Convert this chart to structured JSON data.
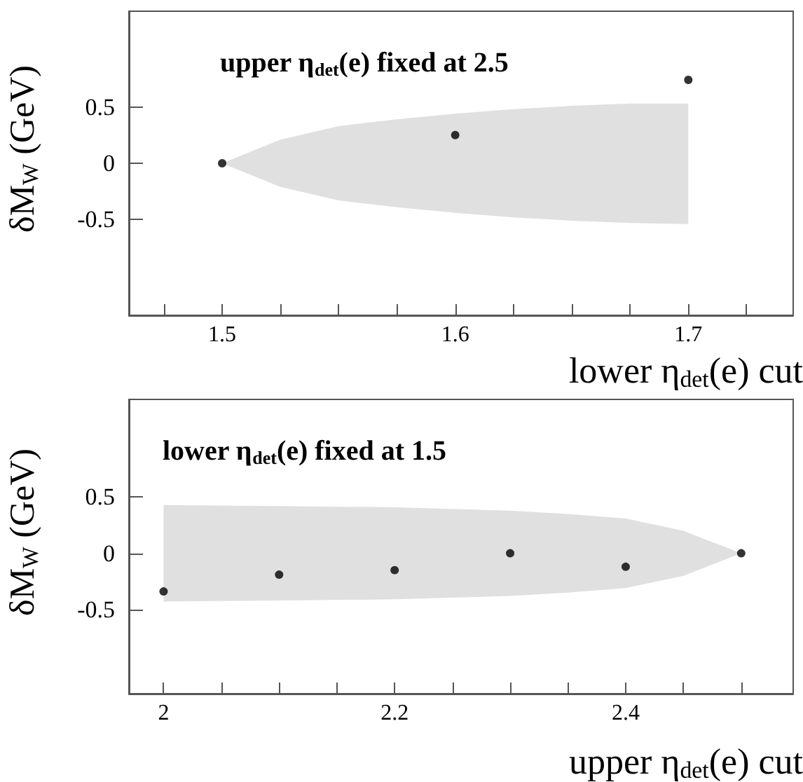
{
  "chart_data": [
    {
      "type": "scatter",
      "xlabel": "lower η$_{det}$(e) cut",
      "ylabel": "δM$_{W}$ (GeV)",
      "annotations": [
        "upper η$_{det}$(e) fixed at 2.5"
      ],
      "xlim": [
        1.46,
        1.745
      ],
      "ylim": [
        -1.35,
        1.35
      ],
      "xticks": [
        {
          "value": 1.475,
          "label": null
        },
        1.5,
        {
          "value": 1.525,
          "label": null
        },
        {
          "value": 1.55,
          "label": null
        },
        {
          "value": 1.575,
          "label": null
        },
        1.6,
        {
          "value": 1.625,
          "label": null
        },
        {
          "value": 1.65,
          "label": null
        },
        {
          "value": 1.675,
          "label": null
        },
        1.7,
        {
          "value": 1.725,
          "label": null
        }
      ],
      "yticks": [
        -0.5,
        0,
        0.5
      ],
      "grid": false,
      "marker": "circle",
      "series": [
        {
          "type": "area",
          "color": "#e0e0e0",
          "x": [
            1.5,
            1.525,
            1.55,
            1.575,
            1.6,
            1.625,
            1.65,
            1.675,
            1.7
          ],
          "values": [
            null,
            null,
            null,
            null,
            null,
            null,
            null,
            null,
            null
          ],
          "lower": [
            0,
            -0.21,
            -0.33,
            -0.39,
            -0.44,
            -0.48,
            -0.51,
            -0.53,
            -0.54
          ],
          "upper": [
            0,
            0.21,
            0.33,
            0.39,
            0.44,
            0.48,
            0.51,
            0.53,
            0.53
          ]
        },
        {
          "type": "scatter",
          "color": "#000000",
          "x": [
            1.5,
            1.6,
            1.7
          ],
          "values": [
            0,
            0.25,
            0.74
          ]
        }
      ]
    },
    {
      "type": "scatter",
      "xlabel": "upper η$_{det}$(e) cut",
      "ylabel": "δM$_{W}$ (GeV)",
      "annotations": [
        "lower η$_{det}$(e) fixed at 1.5"
      ],
      "xlim": [
        1.97,
        2.545
      ],
      "ylim": [
        -1.25,
        1.37
      ],
      "xticks": [
        2,
        {
          "value": 2.05,
          "label": null
        },
        {
          "value": 2.1,
          "label": null
        },
        {
          "value": 2.15,
          "label": null
        },
        2.2,
        {
          "value": 2.25,
          "label": null
        },
        {
          "value": 2.3,
          "label": null
        },
        {
          "value": 2.35,
          "label": null
        },
        2.4,
        {
          "value": 2.45,
          "label": null
        },
        {
          "value": 2.5,
          "label": null
        }
      ],
      "yticks": [
        -0.5,
        0,
        0.5
      ],
      "grid": false,
      "marker": "circle",
      "series": [
        {
          "type": "area",
          "color": "#e0e0e0",
          "x": [
            2,
            2.1,
            2.2,
            2.3,
            2.35,
            2.4,
            2.45,
            2.5
          ],
          "values": [
            null,
            null,
            null,
            null,
            null,
            null,
            null,
            null
          ],
          "lower": [
            -0.43,
            -0.42,
            -0.41,
            -0.38,
            -0.35,
            -0.31,
            -0.2,
            0
          ],
          "upper": [
            0.43,
            0.42,
            0.41,
            0.38,
            0.35,
            0.31,
            0.2,
            0
          ]
        },
        {
          "type": "scatter",
          "color": "#000000",
          "x": [
            2,
            2.1,
            2.2,
            2.3,
            2.4,
            2.5
          ],
          "values": [
            -0.34,
            -0.19,
            -0.15,
            0,
            -0.12,
            0
          ]
        }
      ]
    }
  ]
}
